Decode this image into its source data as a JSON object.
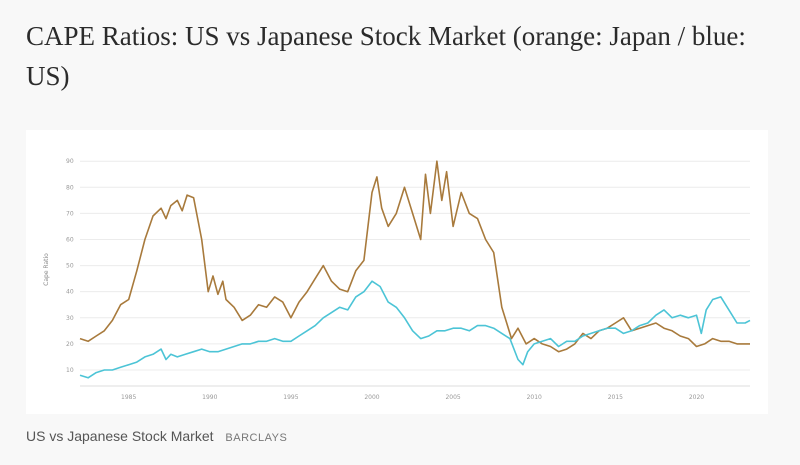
{
  "headline": "CAPE Ratios: US vs Japanese Stock Market (orange: Japan / blue: US)",
  "caption": {
    "text": "US vs Japanese Stock Market",
    "credit": "BARCLAYS"
  },
  "colors": {
    "japan": "#a87a3c",
    "us": "#4cc4d6",
    "grid": "#ececec",
    "background": "#f8f8f8"
  },
  "chart_data": {
    "type": "line",
    "title": "",
    "xlabel": "",
    "ylabel": "Cape Ratio",
    "xlim": [
      1982,
      2023.3
    ],
    "ylim": [
      5,
      92
    ],
    "grid": true,
    "x_ticks": [
      1985,
      1990,
      1995,
      2000,
      2005,
      2010,
      2015,
      2020
    ],
    "y_ticks": [
      10,
      20,
      30,
      40,
      50,
      60,
      70,
      80,
      90
    ],
    "series": [
      {
        "name": "Japan",
        "color": "#a87a3c",
        "x": [
          1982,
          1982.5,
          1983,
          1983.5,
          1984,
          1984.5,
          1985,
          1985.5,
          1986,
          1986.5,
          1987,
          1987.3,
          1987.6,
          1988,
          1988.3,
          1988.6,
          1989,
          1989.5,
          1989.9,
          1990.2,
          1990.5,
          1990.8,
          1991,
          1991.5,
          1992,
          1992.5,
          1993,
          1993.5,
          1994,
          1994.5,
          1995,
          1995.5,
          1996,
          1996.5,
          1997,
          1997.5,
          1998,
          1998.5,
          1999,
          1999.5,
          2000,
          2000.3,
          2000.6,
          2001,
          2001.5,
          2002,
          2002.5,
          2003,
          2003.3,
          2003.6,
          2004,
          2004.3,
          2004.6,
          2005,
          2005.5,
          2006,
          2006.5,
          2007,
          2007.5,
          2008,
          2008.3,
          2008.6,
          2009,
          2009.5,
          2010,
          2010.5,
          2011,
          2011.5,
          2012,
          2012.5,
          2013,
          2013.5,
          2014,
          2014.5,
          2015,
          2015.5,
          2016,
          2016.5,
          2017,
          2017.5,
          2018,
          2018.5,
          2019,
          2019.5,
          2020,
          2020.5,
          2021,
          2021.5,
          2022,
          2022.5,
          2023,
          2023.3
        ],
        "values": [
          22,
          21,
          23,
          25,
          29,
          35,
          37,
          48,
          60,
          69,
          72,
          68,
          73,
          75,
          71,
          77,
          76,
          60,
          40,
          46,
          39,
          44,
          37,
          34,
          29,
          31,
          35,
          34,
          38,
          36,
          30,
          36,
          40,
          45,
          50,
          44,
          41,
          40,
          48,
          52,
          78,
          84,
          72,
          65,
          70,
          80,
          70,
          60,
          85,
          70,
          90,
          75,
          86,
          65,
          78,
          70,
          68,
          60,
          55,
          34,
          28,
          22,
          26,
          20,
          22,
          20,
          19,
          17,
          18,
          20,
          24,
          22,
          25,
          26,
          28,
          30,
          25,
          26,
          27,
          28,
          26,
          25,
          23,
          22,
          19,
          20,
          22,
          21,
          21,
          20,
          20,
          20
        ]
      },
      {
        "name": "US",
        "color": "#4cc4d6",
        "x": [
          1982,
          1982.5,
          1983,
          1983.5,
          1984,
          1984.5,
          1985,
          1985.5,
          1986,
          1986.5,
          1987,
          1987.3,
          1987.6,
          1988,
          1988.5,
          1989,
          1989.5,
          1990,
          1990.5,
          1991,
          1991.5,
          1992,
          1992.5,
          1993,
          1993.5,
          1994,
          1994.5,
          1995,
          1995.5,
          1996,
          1996.5,
          1997,
          1997.5,
          1998,
          1998.5,
          1999,
          1999.5,
          2000,
          2000.5,
          2001,
          2001.5,
          2002,
          2002.5,
          2003,
          2003.5,
          2004,
          2004.5,
          2005,
          2005.5,
          2006,
          2006.5,
          2007,
          2007.5,
          2008,
          2008.5,
          2009,
          2009.3,
          2009.6,
          2010,
          2010.5,
          2011,
          2011.5,
          2012,
          2012.5,
          2013,
          2013.5,
          2014,
          2014.5,
          2015,
          2015.5,
          2016,
          2016.5,
          2017,
          2017.5,
          2018,
          2018.5,
          2019,
          2019.5,
          2020,
          2020.3,
          2020.6,
          2021,
          2021.5,
          2022,
          2022.5,
          2023,
          2023.3
        ],
        "values": [
          8,
          7,
          9,
          10,
          10,
          11,
          12,
          13,
          15,
          16,
          18,
          14,
          16,
          15,
          16,
          17,
          18,
          17,
          17,
          18,
          19,
          20,
          20,
          21,
          21,
          22,
          21,
          21,
          23,
          25,
          27,
          30,
          32,
          34,
          33,
          38,
          40,
          44,
          42,
          36,
          34,
          30,
          25,
          22,
          23,
          25,
          25,
          26,
          26,
          25,
          27,
          27,
          26,
          24,
          22,
          14,
          12,
          17,
          20,
          21,
          22,
          19,
          21,
          21,
          23,
          24,
          25,
          26,
          26,
          24,
          25,
          27,
          28,
          31,
          33,
          30,
          31,
          30,
          31,
          24,
          33,
          37,
          38,
          33,
          28,
          28,
          29
        ]
      }
    ]
  }
}
